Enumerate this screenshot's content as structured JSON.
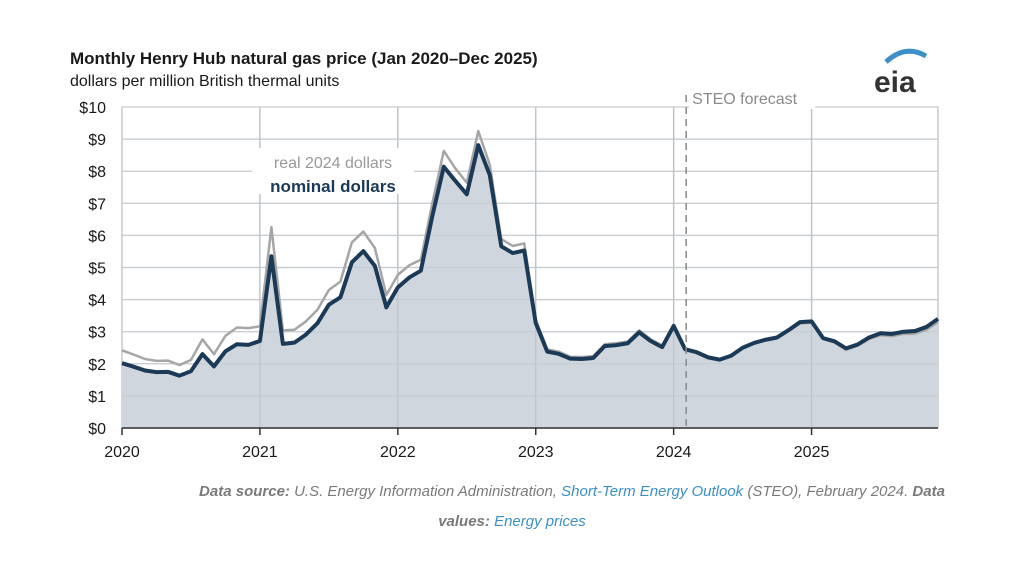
{
  "chart_data": {
    "type": "line",
    "title": "Monthly Henry Hub natural gas price (Jan 2020–Dec 2025)",
    "subtitle": "dollars per million British thermal units",
    "xlabel": "",
    "ylabel": "",
    "ylim": [
      0,
      10
    ],
    "xlim": [
      "2020-01",
      "2025-12"
    ],
    "grid": true,
    "y_ticks": [
      "$0",
      "$1",
      "$2",
      "$3",
      "$4",
      "$5",
      "$6",
      "$7",
      "$8",
      "$9",
      "$10"
    ],
    "x_ticks": [
      "2020",
      "2021",
      "2022",
      "2023",
      "2024",
      "2025"
    ],
    "forecast_start": "2024-02",
    "forecast_label": "STEO forecast",
    "series": [
      {
        "name": "real 2024 dollars",
        "color": "#a6a6a6",
        "values": [
          2.42,
          2.29,
          2.15,
          2.09,
          2.1,
          1.96,
          2.12,
          2.76,
          2.3,
          2.87,
          3.13,
          3.11,
          3.17,
          6.26,
          3.04,
          3.06,
          3.32,
          3.68,
          4.3,
          4.56,
          5.78,
          6.12,
          5.61,
          4.14,
          4.77,
          5.07,
          5.24,
          7.0,
          8.63,
          8.09,
          7.64,
          9.25,
          8.2,
          5.89,
          5.67,
          5.75,
          3.37,
          2.45,
          2.38,
          2.22,
          2.21,
          2.24,
          2.61,
          2.64,
          2.69,
          3.04,
          2.76,
          2.57,
          3.21,
          2.44,
          2.36,
          2.21,
          2.13,
          2.25,
          2.49,
          2.64,
          2.73,
          2.8,
          3.02,
          3.26,
          3.28,
          2.77,
          2.66,
          2.44,
          2.56,
          2.77,
          2.89,
          2.86,
          2.93,
          2.94,
          3.06,
          3.3
        ]
      },
      {
        "name": "nominal dollars",
        "color": "#1b3a57",
        "fill": "#cfd6dd",
        "values": [
          2.02,
          1.91,
          1.79,
          1.74,
          1.75,
          1.63,
          1.77,
          2.3,
          1.92,
          2.39,
          2.61,
          2.59,
          2.71,
          5.35,
          2.62,
          2.66,
          2.91,
          3.26,
          3.84,
          4.07,
          5.16,
          5.51,
          5.05,
          3.76,
          4.38,
          4.69,
          4.9,
          6.6,
          8.14,
          7.7,
          7.28,
          8.81,
          7.88,
          5.66,
          5.45,
          5.53,
          3.27,
          2.38,
          2.31,
          2.16,
          2.15,
          2.18,
          2.55,
          2.58,
          2.64,
          2.98,
          2.71,
          2.52,
          3.18,
          2.45,
          2.36,
          2.2,
          2.13,
          2.25,
          2.5,
          2.65,
          2.75,
          2.82,
          3.05,
          3.3,
          3.32,
          2.8,
          2.7,
          2.48,
          2.6,
          2.82,
          2.95,
          2.93,
          3.0,
          3.02,
          3.15,
          3.4
        ]
      }
    ]
  },
  "logo": {
    "text": "eia"
  },
  "footer": {
    "source_label": "Data source:",
    "source_text": " U.S. Energy Information Administration, ",
    "steo_link": "Short-Term Energy Outlook",
    "steo_after": " (STEO), February 2024. ",
    "values_label": "Data values:",
    "values_link": "Energy prices"
  }
}
